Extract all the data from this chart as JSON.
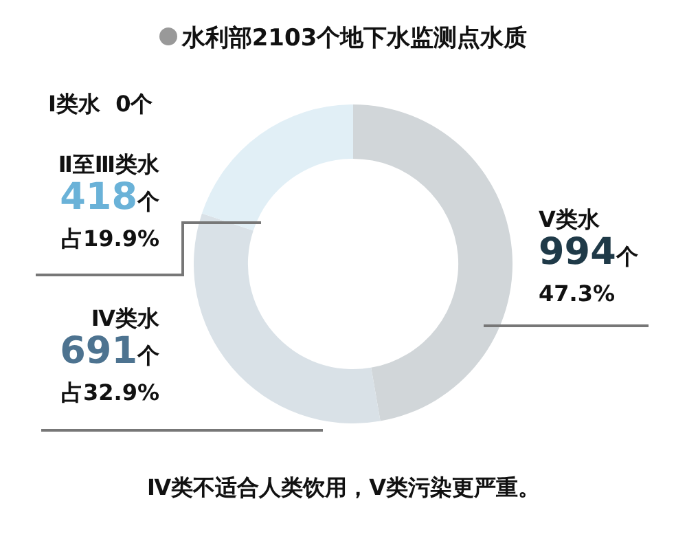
{
  "chart_data": {
    "type": "donut",
    "title": "水利部2103个地下水监测点水质",
    "categories": [
      "Ⅴ类水",
      "Ⅳ类水",
      "Ⅱ至Ⅲ类水",
      "Ⅰ类水"
    ],
    "values": [
      994,
      691,
      418,
      0
    ],
    "colors": [
      "#d1d6d9",
      "#d9e1e7",
      "#e1eff6",
      "#eef6fa"
    ],
    "value_labels": [
      "994个",
      "691个",
      "418个",
      "0个"
    ],
    "annotations": [
      {
        "text": "47.3%",
        "x": "Ⅴ类水"
      },
      {
        "text": "占32.9%",
        "x": "Ⅳ类水"
      },
      {
        "text": "占19.9%",
        "x": "Ⅱ至Ⅲ类水"
      },
      "Ⅳ类不适合人类饮用，Ⅴ类污染更严重。"
    ],
    "legend": false
  }
}
